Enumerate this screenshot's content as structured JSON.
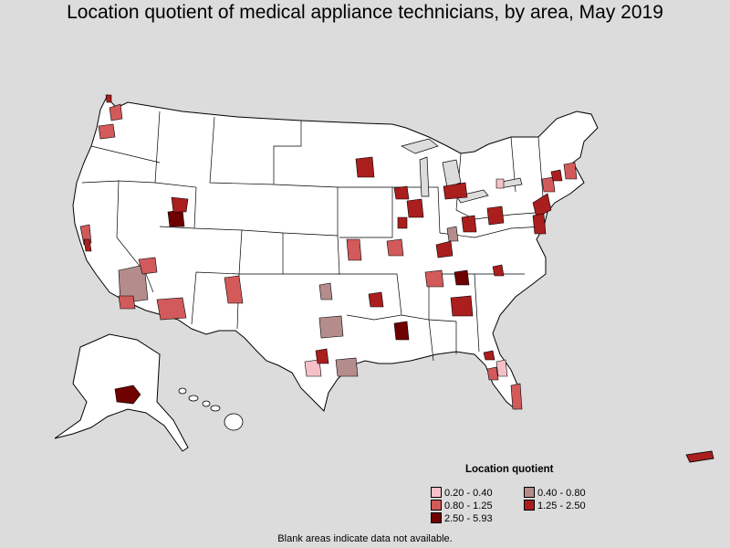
{
  "title": "Location quotient of medical appliance technicians, by area, May 2019",
  "legend": {
    "title": "Location quotient",
    "items": [
      {
        "label": "0.20 - 0.40",
        "color": "#f6c0c8"
      },
      {
        "label": "0.40 - 0.80",
        "color": "#b48c8c"
      },
      {
        "label": "0.80 - 1.25",
        "color": "#d25a5a"
      },
      {
        "label": "1.25 - 2.50",
        "color": "#aa1e1e"
      },
      {
        "label": "2.50 - 5.93",
        "color": "#6e0000"
      }
    ]
  },
  "footnote": "Blank areas indicate data not available.",
  "colors": {
    "background": "#dcdcdc",
    "no_data": "#ffffff",
    "border": "#000000"
  },
  "map": {
    "regions": [
      "contiguous-us",
      "alaska",
      "hawaii",
      "puerto-rico"
    ]
  }
}
